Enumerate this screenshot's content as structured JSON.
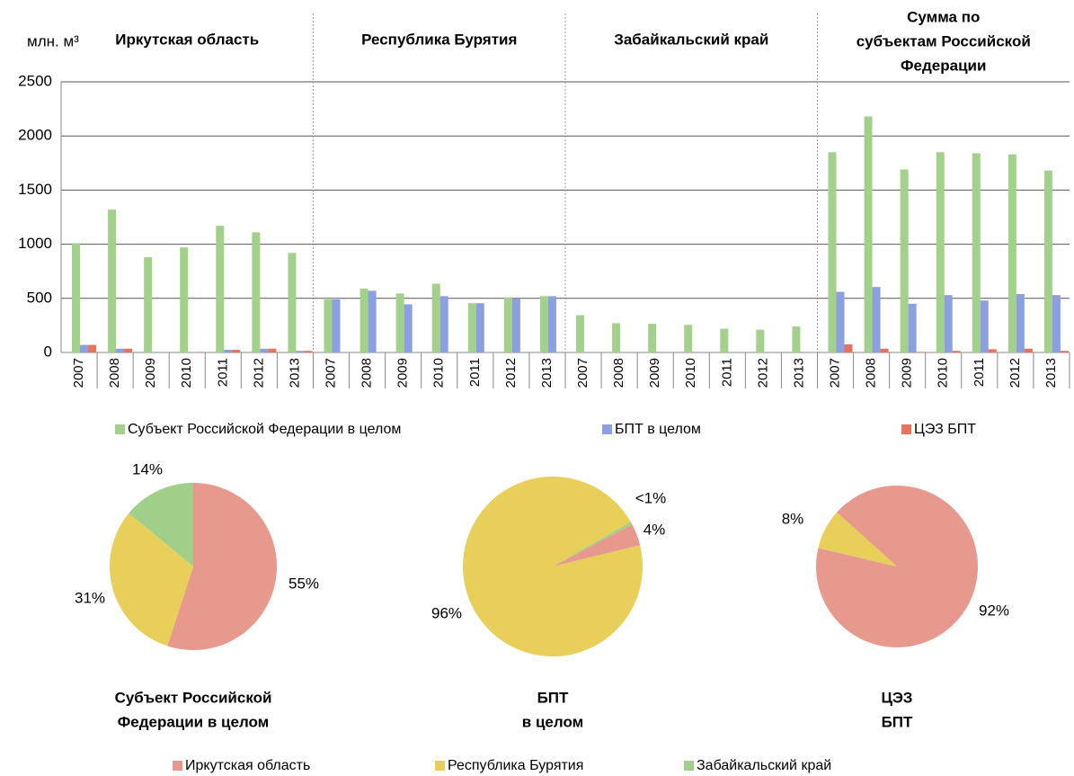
{
  "chart_data": [
    {
      "type": "bar",
      "y_label": "млн. м³",
      "groups": [
        [
          "Иркутская область"
        ],
        [
          "Республика Бурятия"
        ],
        [
          "Забайкальский край"
        ],
        [
          "Сумма по",
          "субъектам Российской",
          "Федерации"
        ]
      ],
      "categories": [
        "2007",
        "2008",
        "2009",
        "2010",
        "2011",
        "2012",
        "2013",
        "2007",
        "2008",
        "2009",
        "2010",
        "2011",
        "2012",
        "2013",
        "2007",
        "2008",
        "2009",
        "2010",
        "2011",
        "2012",
        "2013",
        "2007",
        "2008",
        "2009",
        "2010",
        "2011",
        "2012",
        "2013"
      ],
      "series": [
        {
          "name": "Субъект Российской Федерации в целом",
          "color": "#a3d18c",
          "values": [
            1010,
            1320,
            880,
            970,
            1170,
            1110,
            920,
            490,
            590,
            545,
            635,
            455,
            510,
            520,
            345,
            270,
            265,
            255,
            220,
            210,
            240,
            1850,
            2180,
            1690,
            1850,
            1840,
            1830,
            1680
          ]
        },
        {
          "name": "БПТ в целом",
          "color": "#8c9fe0",
          "values": [
            70,
            35,
            0,
            5,
            25,
            35,
            15,
            490,
            570,
            445,
            520,
            455,
            500,
            520,
            0,
            0,
            0,
            0,
            0,
            0,
            0,
            560,
            605,
            450,
            530,
            480,
            540,
            530
          ]
        },
        {
          "name": "ЦЭЗ БПТ",
          "color": "#e8735a",
          "values": [
            70,
            35,
            0,
            5,
            25,
            35,
            15,
            0,
            0,
            0,
            0,
            0,
            0,
            0,
            0,
            0,
            0,
            0,
            0,
            0,
            0,
            75,
            35,
            5,
            15,
            30,
            35,
            15
          ]
        }
      ],
      "ylim": [
        0,
        2500
      ],
      "yticks": [
        0,
        500,
        1000,
        1500,
        2000,
        2500
      ],
      "grid": true
    },
    {
      "type": "pie",
      "title": [
        "Субъект Российской",
        "Федерации в целом"
      ],
      "values": [
        55,
        31,
        14
      ],
      "value_labels": [
        "55%",
        "31%",
        "14%"
      ]
    },
    {
      "type": "pie",
      "title": [
        "БПТ",
        "в целом"
      ],
      "values": [
        4,
        96,
        0.5
      ],
      "value_labels": [
        "4%",
        "96%",
        "<1%"
      ]
    },
    {
      "type": "pie",
      "title": [
        "ЦЭЗ",
        "БПТ"
      ],
      "values": [
        92,
        8,
        0
      ],
      "value_labels": [
        "92%",
        "8%",
        null
      ]
    }
  ],
  "pie_legend": {
    "categories": [
      "Иркутская область",
      "Республика Бурятия",
      "Забайкальский край"
    ],
    "colors": [
      "#e8998d",
      "#e8cf5a",
      "#a0cf8a"
    ]
  }
}
